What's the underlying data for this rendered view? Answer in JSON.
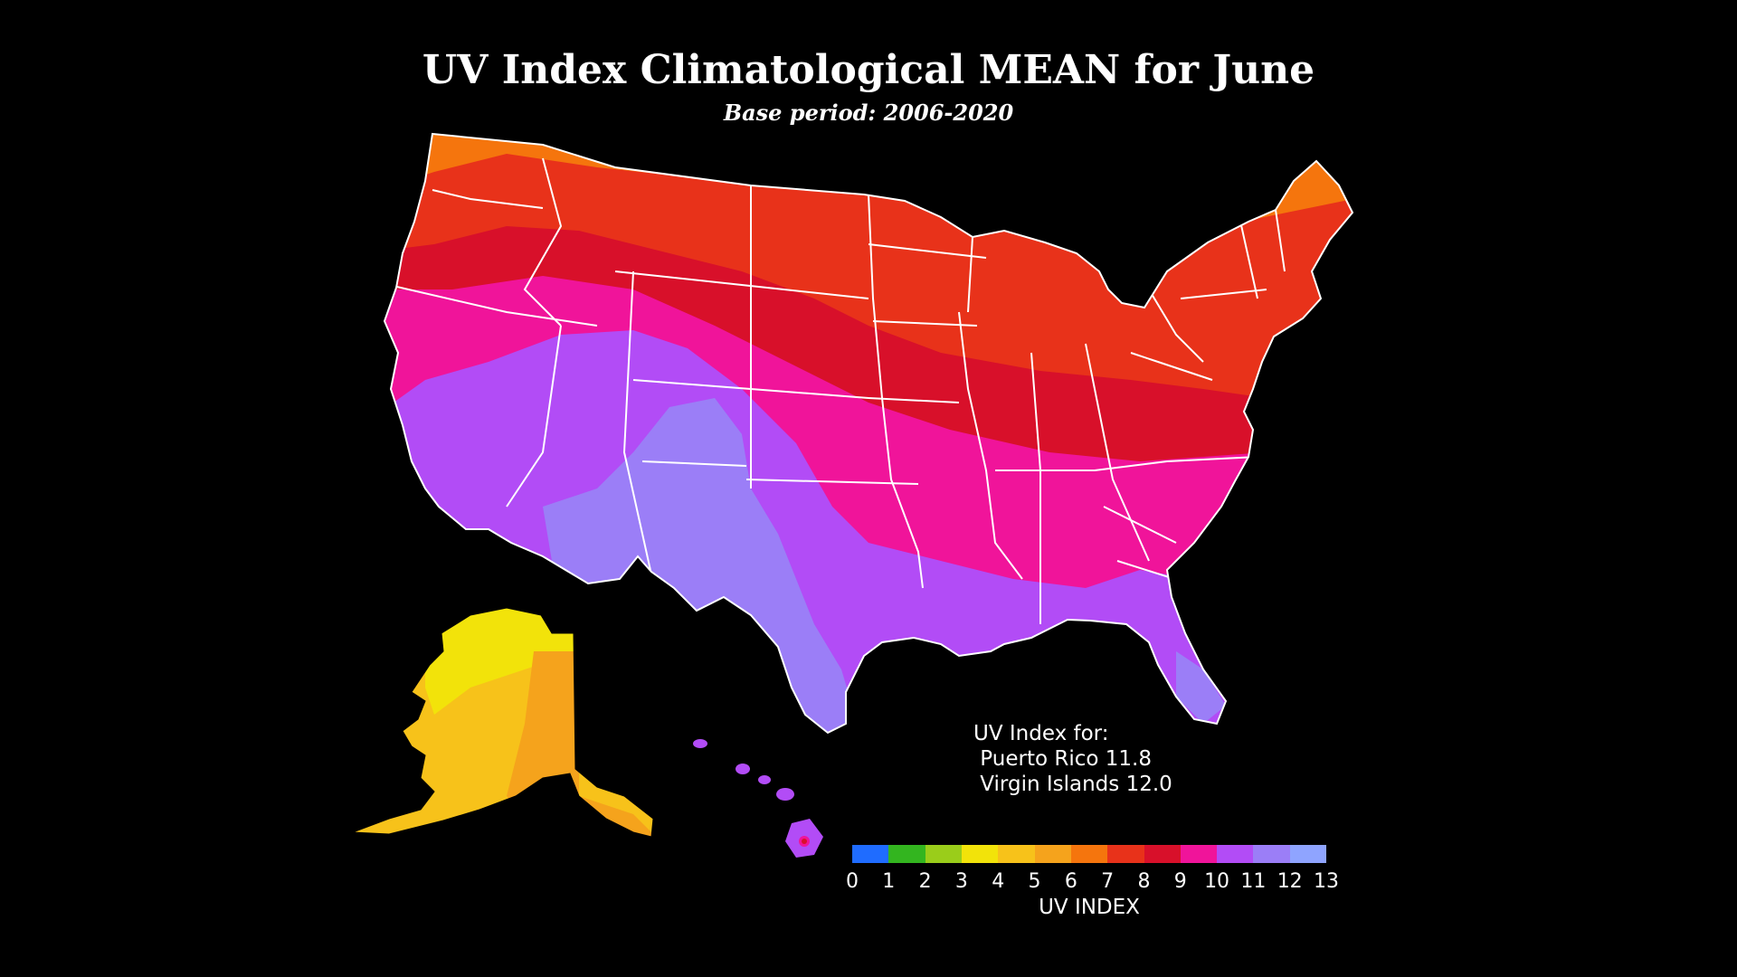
{
  "title": "UV Index Climatological MEAN for June",
  "subtitle": "Base period: 2006-2020",
  "territories": {
    "heading": "UV Index for:",
    "lines": [
      " Puerto Rico 11.8",
      " Virgin Islands 12.0"
    ]
  },
  "legend": {
    "label": "UV INDEX",
    "ticks": [
      "0",
      "1",
      "2",
      "3",
      "4",
      "5",
      "6",
      "7",
      "8",
      "9",
      "10",
      "11",
      "12",
      "13"
    ],
    "colors": [
      "#1f6cff",
      "#33b51f",
      "#9acd1a",
      "#f2e30a",
      "#f7c21a",
      "#f5a31c",
      "#f5750d",
      "#e8321a",
      "#d8102a",
      "#f0149a",
      "#b24cf6",
      "#9b7ef7",
      "#8fa4ff"
    ]
  },
  "chart_data": {
    "type": "heatmap",
    "title": "UV Index Climatological MEAN for June",
    "subtitle": "Base period: 2006-2020",
    "colorbar_label": "UV INDEX",
    "value_range": [
      0,
      13
    ],
    "colorbar_ticks": [
      0,
      1,
      2,
      3,
      4,
      5,
      6,
      7,
      8,
      9,
      10,
      11,
      12,
      13
    ],
    "annotations": [
      "UV Index for:",
      "Puerto Rico 11.8",
      "Virgin Islands 12.0"
    ]
  }
}
